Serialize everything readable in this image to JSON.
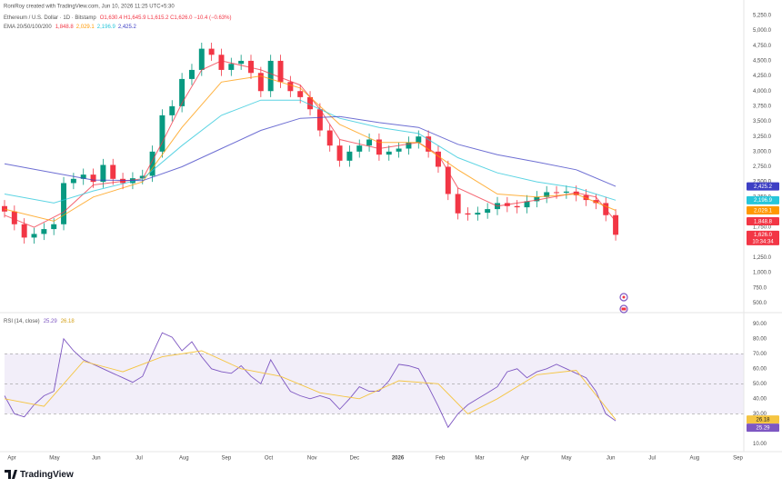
{
  "header": {
    "author": "RoniRoy created with TradingView.com, Jun 10, 2026 11:25 UTC+5:30",
    "symbol": "Ethereum / U.S. Dollar · 1D · Bitstamp",
    "ohlc": "O1,630.4 H1,645.9 L1,615.2 C1,626.0 −10.4 (−0.63%)",
    "indicator": "EMA 20/50/100/200"
  },
  "footer": {
    "brand": "TradingView"
  },
  "chart_data": [
    {
      "type": "candlestick",
      "xlim": [
        0,
        75
      ],
      "ylim": [
        400,
        5400
      ],
      "yticks": [
        {
          "value": 500,
          "label": "500.0"
        },
        {
          "value": 750,
          "label": "750.0"
        },
        {
          "value": 1000,
          "label": "1,000.0"
        },
        {
          "value": 1250,
          "label": "1,250.0"
        },
        {
          "value": 1500,
          "label": "1,500.0"
        },
        {
          "value": 1750,
          "label": "1,750.0"
        },
        {
          "value": 2000,
          "label": "2,000.0"
        },
        {
          "value": 2250,
          "label": "2,250.0"
        },
        {
          "value": 2500,
          "label": "2,500.0"
        },
        {
          "value": 2750,
          "label": "2,750.0"
        },
        {
          "value": 3000,
          "label": "3,000.0"
        },
        {
          "value": 3250,
          "label": "3,250.0"
        },
        {
          "value": 3500,
          "label": "3,500.0"
        },
        {
          "value": 3750,
          "label": "3,750.0"
        },
        {
          "value": 4000,
          "label": "4,000.0"
        },
        {
          "value": 4250,
          "label": "4,250.0"
        },
        {
          "value": 4500,
          "label": "4,500.0"
        },
        {
          "value": 4750,
          "label": "4,750.0"
        },
        {
          "value": 5000,
          "label": "5,000.0"
        },
        {
          "value": 5250,
          "label": "5,250.0"
        }
      ],
      "up_color": "#089981",
      "down_color": "#f23645",
      "open": [
        2100,
        2010,
        1800,
        1580,
        1640,
        1720,
        1800,
        2480,
        2550,
        2620,
        2500,
        2780,
        2550,
        2480,
        2560,
        2600,
        3000,
        3600,
        3750,
        4200,
        4350,
        4700,
        4600,
        4350,
        4450,
        4500,
        4300,
        4000,
        4500,
        4150,
        4000,
        3900,
        3700,
        3350,
        3100,
        2850,
        3000,
        3100,
        3200,
        2950,
        3000,
        3050,
        3150,
        3250,
        3000,
        2750,
        2300,
        1980,
        1960,
        1990,
        2050,
        2150,
        2100,
        2080,
        2180,
        2250,
        2330,
        2320,
        2340,
        2280,
        2200,
        2150,
        1950
      ],
      "high": [
        2200,
        2110,
        1900,
        1740,
        1820,
        1900,
        2580,
        2650,
        2720,
        2720,
        2880,
        2880,
        2650,
        2660,
        2700,
        3100,
        3700,
        3850,
        4300,
        4450,
        4800,
        4800,
        4700,
        4550,
        4600,
        4600,
        4400,
        4600,
        4600,
        4250,
        4100,
        4000,
        3800,
        3450,
        3200,
        3100,
        3200,
        3300,
        3300,
        3100,
        3150,
        3250,
        3350,
        3350,
        3100,
        2850,
        2400,
        2080,
        2090,
        2150,
        2250,
        2250,
        2200,
        2280,
        2350,
        2430,
        2430,
        2440,
        2440,
        2380,
        2300,
        2250,
        2050
      ],
      "low": [
        1910,
        1700,
        1480,
        1480,
        1540,
        1620,
        1700,
        2380,
        2450,
        2400,
        2400,
        2450,
        2380,
        2380,
        2460,
        2500,
        2900,
        3500,
        3650,
        4100,
        4250,
        4500,
        4250,
        4250,
        4350,
        4200,
        3900,
        3900,
        4050,
        3900,
        3800,
        3600,
        3250,
        3000,
        2750,
        2750,
        2900,
        3000,
        2850,
        2850,
        2900,
        2950,
        3050,
        2900,
        2650,
        2200,
        1880,
        1860,
        1860,
        1890,
        1950,
        2000,
        1980,
        1980,
        2080,
        2150,
        2220,
        2220,
        2180,
        2100,
        2050,
        1850,
        1530
      ],
      "close": [
        2010,
        1800,
        1580,
        1640,
        1720,
        1800,
        2480,
        2550,
        2620,
        2500,
        2780,
        2550,
        2480,
        2560,
        2600,
        3000,
        3600,
        3750,
        4200,
        4350,
        4700,
        4600,
        4350,
        4450,
        4500,
        4300,
        4000,
        4500,
        4150,
        4000,
        3900,
        3700,
        3350,
        3100,
        2850,
        3000,
        3100,
        3200,
        2950,
        3000,
        3050,
        3150,
        3250,
        3000,
        2750,
        2300,
        1980,
        1960,
        1990,
        2050,
        2150,
        2100,
        2080,
        2180,
        2250,
        2330,
        2320,
        2340,
        2280,
        2200,
        2150,
        1950,
        1626
      ],
      "last_price": {
        "value": 1626.0,
        "label": "1,626.0"
      },
      "countdown": "10:34:34",
      "series": [
        {
          "color": "#f23645",
          "x": [
            0,
            3,
            6,
            9,
            14,
            16,
            18,
            20,
            22,
            26,
            30,
            32,
            34,
            38,
            42,
            44,
            46,
            50,
            54,
            58,
            60,
            62
          ],
          "values": [
            1950,
            1750,
            2000,
            2450,
            2550,
            3150,
            3800,
            4350,
            4500,
            4350,
            4100,
            3700,
            3200,
            3050,
            3150,
            2950,
            2400,
            2100,
            2200,
            2320,
            2250,
            1848.8
          ],
          "value_labels": [
            null,
            null,
            null,
            null,
            null,
            null,
            null,
            null,
            null,
            null,
            null,
            null,
            null,
            null,
            null,
            null,
            null,
            null,
            null,
            null,
            null,
            "1,848.8"
          ]
        },
        {
          "color": "#ff9800",
          "x": [
            0,
            5,
            9,
            14,
            18,
            22,
            26,
            30,
            34,
            38,
            42,
            46,
            50,
            54,
            58,
            62
          ],
          "values": [
            2050,
            1850,
            2250,
            2500,
            3400,
            4150,
            4250,
            4050,
            3450,
            3150,
            3150,
            2700,
            2300,
            2250,
            2300,
            2029.1
          ],
          "value_labels": [
            null,
            null,
            null,
            null,
            null,
            null,
            null,
            null,
            null,
            null,
            null,
            null,
            null,
            null,
            null,
            "2,029.1"
          ]
        },
        {
          "color": "#26c6da",
          "x": [
            0,
            5,
            9,
            14,
            18,
            22,
            26,
            30,
            34,
            38,
            42,
            46,
            50,
            54,
            58,
            62
          ],
          "values": [
            2300,
            2150,
            2350,
            2550,
            3100,
            3600,
            3850,
            3850,
            3550,
            3400,
            3300,
            2900,
            2650,
            2500,
            2400,
            2196.9
          ],
          "value_labels": [
            null,
            null,
            null,
            null,
            null,
            null,
            null,
            null,
            null,
            null,
            null,
            null,
            null,
            null,
            null,
            "2,196.9"
          ]
        },
        {
          "color": "#3d3fc4",
          "x": [
            0,
            5,
            9,
            14,
            18,
            22,
            26,
            30,
            34,
            38,
            42,
            46,
            50,
            54,
            58,
            62
          ],
          "values": [
            2800,
            2650,
            2530,
            2520,
            2750,
            3050,
            3350,
            3550,
            3580,
            3480,
            3400,
            3120,
            2950,
            2830,
            2700,
            2425.2
          ],
          "value_labels": [
            null,
            null,
            null,
            null,
            null,
            null,
            null,
            null,
            null,
            null,
            null,
            null,
            null,
            null,
            null,
            "2,425.2"
          ]
        }
      ]
    },
    {
      "type": "line",
      "title": "RSI (14, close)",
      "xlim": [
        0,
        75
      ],
      "xticks": [
        {
          "value": 0.74,
          "label": "Apr"
        },
        {
          "value": 5.07,
          "label": "May"
        },
        {
          "value": 9.3,
          "label": "Jun"
        },
        {
          "value": 13.65,
          "label": "Jul"
        },
        {
          "value": 18.2,
          "label": "Aug"
        },
        {
          "value": 22.5,
          "label": "Sep"
        },
        {
          "value": 26.8,
          "label": "Oct"
        },
        {
          "value": 31.2,
          "label": "Nov"
        },
        {
          "value": 35.5,
          "label": "Dec"
        },
        {
          "value": 39.9,
          "label": "2026"
        },
        {
          "value": 44.2,
          "label": "Feb"
        },
        {
          "value": 48.2,
          "label": "Mar"
        },
        {
          "value": 52.8,
          "label": "Apr"
        },
        {
          "value": 57.0,
          "label": "May"
        },
        {
          "value": 61.5,
          "label": "Jun"
        },
        {
          "value": 65.7,
          "label": "Jul"
        },
        {
          "value": 70.0,
          "label": "Aug"
        },
        {
          "value": 74.4,
          "label": "Sep"
        }
      ],
      "ylim": [
        6,
        95
      ],
      "yticks": [
        {
          "value": 10,
          "label": "10.00"
        },
        {
          "value": 20,
          "label": "20.00"
        },
        {
          "value": 30,
          "label": "30.00"
        },
        {
          "value": 40,
          "label": "40.00"
        },
        {
          "value": 50,
          "label": "50.00"
        },
        {
          "value": 60,
          "label": "60.00"
        },
        {
          "value": 70,
          "label": "70.00"
        },
        {
          "value": 80,
          "label": "80.00"
        },
        {
          "value": 90,
          "label": "90.00"
        }
      ],
      "levels": [
        30,
        50,
        70
      ],
      "band_color": "#7e57c2",
      "series": [
        {
          "color": "#7e57c2",
          "values": [
            42,
            30,
            28,
            36,
            42,
            45,
            80,
            72,
            66,
            63,
            60,
            57,
            54,
            51,
            55,
            70,
            84,
            81,
            72,
            78,
            68,
            60,
            58,
            57,
            62,
            55,
            50,
            66,
            55,
            45,
            42,
            40,
            42,
            40,
            33,
            40,
            48,
            45,
            45,
            52,
            63,
            62,
            60,
            48,
            35,
            21,
            30,
            36,
            40,
            44,
            48,
            58,
            60,
            54,
            58,
            60,
            63,
            60,
            57,
            54,
            45,
            30,
            25.29
          ],
          "value_labels": [
            null,
            null,
            null,
            null,
            null,
            null,
            null,
            null,
            null,
            null,
            null,
            null,
            null,
            null,
            null,
            null,
            null,
            null,
            null,
            null,
            null,
            null,
            null,
            null,
            null,
            null,
            null,
            null,
            null,
            null,
            null,
            null,
            null,
            null,
            null,
            null,
            null,
            null,
            null,
            null,
            null,
            null,
            null,
            null,
            null,
            null,
            null,
            null,
            null,
            null,
            null,
            null,
            null,
            null,
            null,
            null,
            null,
            null,
            null,
            null,
            null,
            null,
            "25.29"
          ]
        },
        {
          "color": "#f5c542",
          "x": [
            0,
            4,
            8,
            12,
            16,
            20,
            24,
            28,
            32,
            36,
            40,
            44,
            47,
            50,
            54,
            58,
            62
          ],
          "values": [
            40,
            35,
            65,
            58,
            68,
            72,
            60,
            55,
            44,
            40,
            52,
            50,
            30,
            40,
            56,
            59,
            26.18
          ],
          "value_labels": [
            null,
            null,
            null,
            null,
            null,
            null,
            null,
            null,
            null,
            null,
            null,
            null,
            null,
            null,
            null,
            null,
            "26.18"
          ]
        }
      ]
    }
  ]
}
